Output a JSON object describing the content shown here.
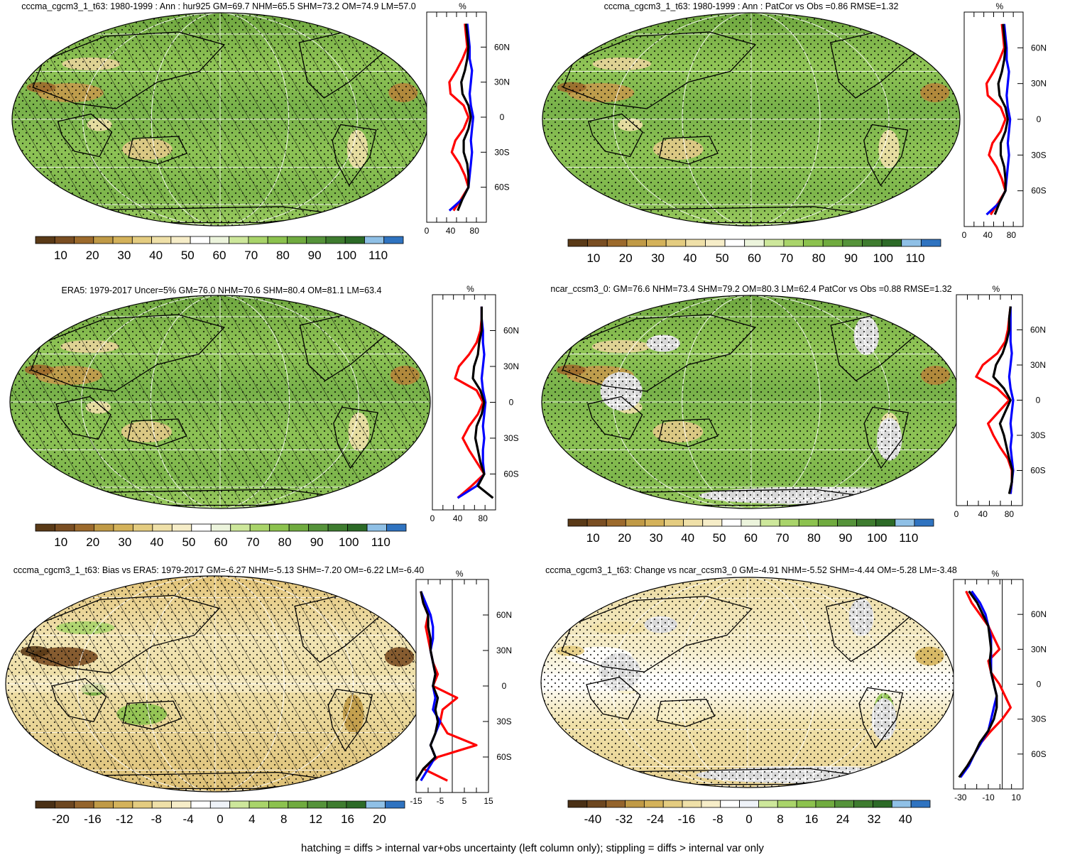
{
  "colors": {
    "abs_palette": [
      "#5a3a17",
      "#7a4e22",
      "#9c6a2c",
      "#c09a46",
      "#d4b25a",
      "#e4cc80",
      "#efe0a8",
      "#f6edc8",
      "#ffffff",
      "#ecf4dc",
      "#cde79b",
      "#a9d46a",
      "#8cc24e",
      "#70ab3f",
      "#55933a",
      "#3e7c2f",
      "#2c6a27",
      "#8fc0e6",
      "#2f73c0"
    ],
    "diff_palette": [
      "#4a3015",
      "#6d4720",
      "#94642c",
      "#c09a46",
      "#d4b25a",
      "#e4cc80",
      "#efe0a8",
      "#f6edc8",
      "#ffffff",
      "#eef2f8",
      "#cde79b",
      "#a9d46a",
      "#8cc24e",
      "#70ab3f",
      "#55933a",
      "#3e7c2f",
      "#2c6a27",
      "#8fc0e6",
      "#2f73c0"
    ],
    "land_mask": "#d9d9d9",
    "profile_model": "#ff0000",
    "profile_ocean": "#0000ff",
    "profile_all": "#000000"
  },
  "panels": [
    {
      "title": "cccma_cgcm3_1_t63: 1980-1999 : Ann : hur925 GM=69.7 NHM=65.5 SHM=73.2 OM=74.9 LM=57.0",
      "field": "abs",
      "hatch": true,
      "stipple": true,
      "mask": false,
      "colorbar_labels": [
        "10",
        "20",
        "30",
        "40",
        "50",
        "60",
        "70",
        "80",
        "90",
        "100",
        "110"
      ],
      "profile": {
        "unit": "%",
        "lat_labels": [
          "60N",
          "30N",
          "0",
          "30S",
          "60S"
        ],
        "x_labels": [
          "0",
          "40",
          "80"
        ],
        "xmin": 0,
        "xmax": 100,
        "zero_line": false
      }
    },
    {
      "title": "cccma_cgcm3_1_t63: 1980-1999 : Ann : PatCor vs Obs =0.86 RMSE=1.32",
      "field": "abs",
      "hatch": false,
      "stipple": true,
      "mask": false,
      "colorbar_labels": [
        "10",
        "20",
        "30",
        "40",
        "50",
        "60",
        "70",
        "80",
        "90",
        "100",
        "110"
      ],
      "profile": {
        "unit": "%",
        "lat_labels": [
          "60N",
          "30N",
          "0",
          "30S",
          "60S"
        ],
        "x_labels": [
          "0",
          "40",
          "80"
        ],
        "xmin": 0,
        "xmax": 100,
        "zero_line": false
      }
    },
    {
      "title": "ERA5: 1979-2017 Uncer=5% GM=76.0 NHM=70.6 SHM=80.4 OM=81.1 LM=63.4",
      "field": "abs",
      "hatch": true,
      "stipple": true,
      "mask": false,
      "colorbar_labels": [
        "10",
        "20",
        "30",
        "40",
        "50",
        "60",
        "70",
        "80",
        "90",
        "100",
        "110"
      ],
      "profile": {
        "unit": "%",
        "lat_labels": [
          "60N",
          "30N",
          "0",
          "30S",
          "60S"
        ],
        "x_labels": [
          "0",
          "40",
          "80"
        ],
        "xmin": 0,
        "xmax": 100,
        "zero_line": false
      }
    },
    {
      "title": "ncar_ccsm3_0: GM=76.6 NHM=73.4 SHM=79.2 OM=80.3 LM=62.4 PatCor vs Obs =0.88 RMSE=1.32",
      "field": "abs",
      "hatch": false,
      "stipple": true,
      "mask": true,
      "colorbar_labels": [
        "10",
        "20",
        "30",
        "40",
        "50",
        "60",
        "70",
        "80",
        "90",
        "100",
        "110"
      ],
      "profile": {
        "unit": "%",
        "lat_labels": [
          "60N",
          "30N",
          "0",
          "30S",
          "60S"
        ],
        "x_labels": [
          "0",
          "40",
          "80"
        ],
        "xmin": 0,
        "xmax": 100,
        "zero_line": false
      }
    },
    {
      "title": "cccma_cgcm3_1_t63: Bias vs ERA5: 1979-2017 GM=-6.27 NHM=-5.13 SHM=-7.20 OM=-6.22 LM=-6.40",
      "field": "bias",
      "hatch": true,
      "stipple": true,
      "mask": false,
      "colorbar_labels": [
        "-20",
        "-16",
        "-12",
        "-8",
        "-4",
        "0",
        "4",
        "8",
        "12",
        "16",
        "20"
      ],
      "profile": {
        "unit": "%",
        "lat_labels": [
          "60N",
          "30N",
          "0",
          "30S",
          "60S"
        ],
        "x_labels": [
          "-15",
          "-5",
          "5",
          "15"
        ],
        "xmin": -15,
        "xmax": 15,
        "zero_line": true
      }
    },
    {
      "title": "cccma_cgcm3_1_t63: Change vs ncar_ccsm3_0 GM=-4.91 NHM=-5.52 SHM=-4.44 OM=-5.28 LM=-3.48",
      "field": "change",
      "hatch": false,
      "stipple": true,
      "mask": true,
      "colorbar_labels": [
        "-40",
        "-32",
        "-24",
        "-16",
        "-8",
        "0",
        "8",
        "16",
        "24",
        "32",
        "40"
      ],
      "profile": {
        "unit": "%",
        "lat_labels": [
          "60N",
          "30N",
          "0",
          "30S",
          "60S"
        ],
        "x_labels": [
          "-30",
          "-10",
          "10"
        ],
        "xmin": -35,
        "xmax": 15,
        "zero_line": true
      }
    }
  ],
  "footer": "hatching = diffs > internal var+obs uncertainty (left column only); stippling = diffs > internal var only",
  "chart_data": [
    {
      "type": "line",
      "title": "cccma_cgcm3_1_t63: 1980-1999 : Ann : hur925 GM=69.7 NHM=65.5 SHM=73.2 OM=74.9 LM=57.0",
      "xlabel": "%",
      "ylabel": "",
      "lat": [
        -80,
        -70,
        -60,
        -50,
        -40,
        -30,
        -20,
        -10,
        0,
        10,
        20,
        30,
        40,
        50,
        60,
        70,
        80
      ],
      "series": [
        {
          "values": [
            45,
            58,
            70,
            64,
            55,
            42,
            48,
            62,
            70,
            62,
            40,
            38,
            50,
            60,
            68,
            66,
            64
          ],
          "color": "#ff0000"
        },
        {
          "values": [
            38,
            60,
            70,
            72,
            74,
            76,
            74,
            76,
            78,
            74,
            72,
            74,
            76,
            72,
            72,
            70,
            68
          ],
          "color": "#0000ff"
        },
        {
          "values": [
            52,
            60,
            70,
            70,
            68,
            62,
            62,
            70,
            74,
            70,
            60,
            58,
            64,
            68,
            70,
            68,
            66
          ],
          "color": "#000000"
        }
      ]
    },
    {
      "type": "line",
      "title": "cccma_cgcm3_1_t63: 1980-1999 : Ann : PatCor vs Obs =0.86 RMSE=1.32",
      "xlabel": "%",
      "ylabel": "",
      "lat": [
        -80,
        -70,
        -60,
        -50,
        -40,
        -30,
        -20,
        -10,
        0,
        10,
        20,
        30,
        40,
        50,
        60,
        70,
        80
      ],
      "series": [
        {
          "values": [
            45,
            58,
            70,
            64,
            55,
            42,
            48,
            62,
            70,
            62,
            40,
            38,
            50,
            60,
            68,
            66,
            64
          ],
          "color": "#ff0000"
        },
        {
          "values": [
            38,
            60,
            70,
            72,
            74,
            76,
            74,
            76,
            78,
            74,
            72,
            74,
            76,
            72,
            72,
            70,
            68
          ],
          "color": "#0000ff"
        },
        {
          "values": [
            52,
            60,
            70,
            70,
            68,
            62,
            62,
            70,
            74,
            70,
            60,
            58,
            64,
            68,
            70,
            68,
            66
          ],
          "color": "#000000"
        }
      ]
    },
    {
      "type": "line",
      "title": "ERA5: 1979-2017 Uncer=5% GM=76.0 NHM=70.6 SHM=80.4 OM=81.1 LM=63.4",
      "xlabel": "%",
      "ylabel": "",
      "lat": [
        -80,
        -70,
        -60,
        -50,
        -40,
        -30,
        -20,
        -10,
        0,
        10,
        20,
        30,
        40,
        50,
        60,
        70,
        80
      ],
      "series": [
        {
          "values": [
            40,
            62,
            82,
            70,
            58,
            48,
            58,
            72,
            80,
            70,
            36,
            42,
            58,
            70,
            76,
            78,
            78
          ],
          "color": "#ff0000"
        },
        {
          "values": [
            40,
            70,
            82,
            80,
            80,
            82,
            80,
            82,
            84,
            80,
            78,
            80,
            82,
            80,
            80,
            78,
            78
          ],
          "color": "#0000ff"
        },
        {
          "values": [
            96,
            72,
            82,
            76,
            72,
            68,
            70,
            78,
            82,
            76,
            64,
            66,
            72,
            74,
            78,
            78,
            78
          ],
          "color": "#000000"
        }
      ]
    },
    {
      "type": "line",
      "title": "ncar_ccsm3_0: GM=76.6 NHM=73.4 SHM=79.2 OM=80.3 LM=62.4 PatCor vs Obs =0.88 RMSE=1.32",
      "xlabel": "%",
      "ylabel": "",
      "lat": [
        -80,
        -70,
        -60,
        -50,
        -40,
        -30,
        -20,
        -10,
        0,
        10,
        20,
        30,
        40,
        50,
        60,
        70,
        80
      ],
      "series": [
        {
          "values": [
            82,
            84,
            84,
            78,
            66,
            56,
            48,
            64,
            80,
            62,
            30,
            40,
            62,
            74,
            78,
            80,
            82
          ],
          "color": "#ff0000"
        },
        {
          "values": [
            82,
            84,
            86,
            84,
            82,
            84,
            82,
            84,
            86,
            82,
            80,
            82,
            84,
            82,
            82,
            82,
            82
          ],
          "color": "#0000ff"
        },
        {
          "values": [
            80,
            84,
            85,
            80,
            76,
            72,
            66,
            74,
            82,
            72,
            56,
            60,
            70,
            76,
            80,
            80,
            82
          ],
          "color": "#000000"
        }
      ]
    },
    {
      "type": "line",
      "title": "cccma_cgcm3_1_t63: Bias vs ERA5: 1979-2017 GM=-6.27 NHM=-5.13 SHM=-7.20 OM=-6.22 LM=-6.40",
      "xlabel": "%",
      "ylabel": "",
      "lat": [
        -80,
        -70,
        -60,
        -50,
        -40,
        -30,
        -20,
        -10,
        0,
        10,
        20,
        30,
        40,
        50,
        60,
        70,
        80
      ],
      "series": [
        {
          "values": [
            -2,
            -12,
            -6,
            10,
            -2,
            -5,
            -4,
            2,
            -8,
            -6,
            -8,
            -9,
            -10,
            -11,
            -10,
            -12,
            -13
          ],
          "color": "#ff0000"
        },
        {
          "values": [
            -13,
            -10,
            -7,
            -9,
            -7,
            -5,
            -8,
            -7,
            -8,
            -7,
            -8,
            -9,
            -8,
            -8,
            -9,
            -11,
            -13
          ],
          "color": "#0000ff"
        },
        {
          "values": [
            -15,
            -12,
            -7,
            -9,
            -7,
            -6,
            -7,
            -6,
            -8,
            -7,
            -8,
            -9,
            -9,
            -10,
            -10,
            -12,
            -13
          ],
          "color": "#000000"
        }
      ]
    },
    {
      "type": "line",
      "title": "cccma_cgcm3_1_t63: Change vs ncar_ccsm3_0 GM=-4.91 NHM=-5.52 SHM=-4.44 OM=-5.28 LM=-3.48",
      "xlabel": "%",
      "ylabel": "",
      "lat": [
        -80,
        -70,
        -60,
        -50,
        -40,
        -30,
        -20,
        -10,
        0,
        10,
        20,
        30,
        40,
        50,
        60,
        70,
        80
      ],
      "series": [
        {
          "values": [
            -30,
            -25,
            -20,
            -15,
            -8,
            0,
            6,
            2,
            -2,
            -8,
            -10,
            -2,
            -6,
            -10,
            -16,
            -22,
            -26
          ],
          "color": "#ff0000"
        },
        {
          "values": [
            -30,
            -24,
            -20,
            -15,
            -10,
            -8,
            -6,
            -4,
            -6,
            -8,
            -8,
            -8,
            -8,
            -10,
            -12,
            -16,
            -22
          ],
          "color": "#0000ff"
        },
        {
          "values": [
            -31,
            -25,
            -20,
            -16,
            -10,
            -6,
            -4,
            -4,
            -6,
            -8,
            -9,
            -8,
            -9,
            -10,
            -14,
            -18,
            -24
          ],
          "color": "#000000"
        }
      ]
    }
  ]
}
